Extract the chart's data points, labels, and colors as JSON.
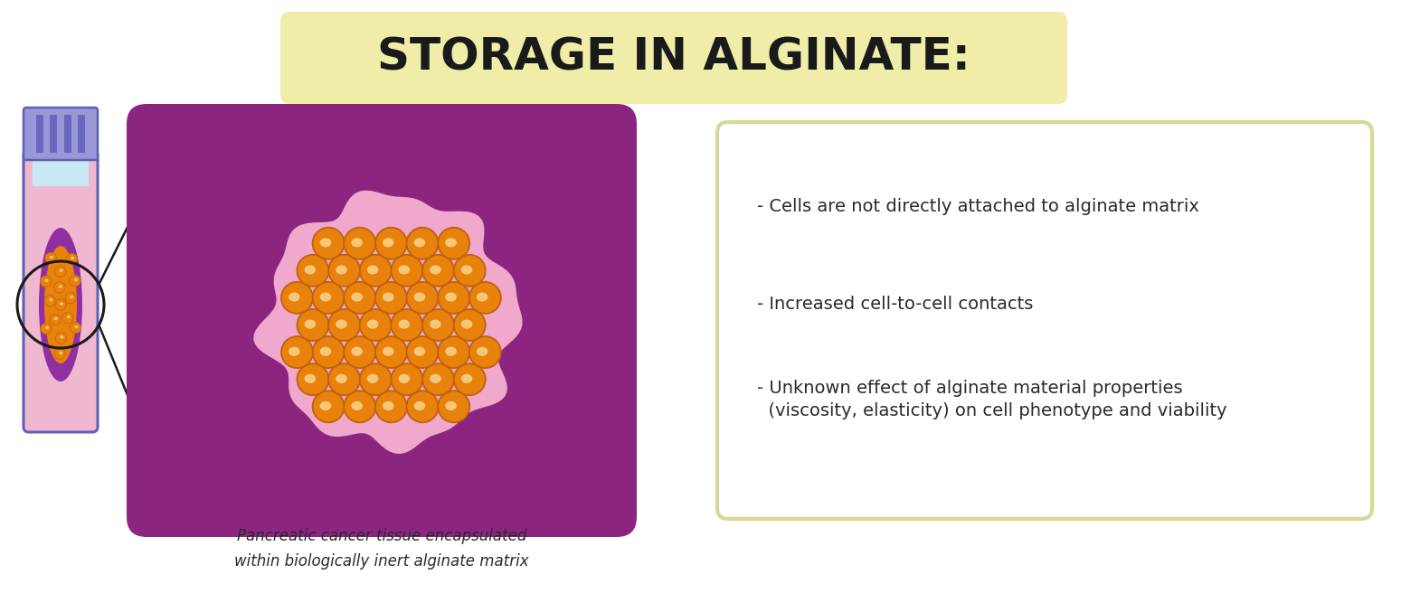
{
  "title": "STORAGE IN ALGINATE:",
  "title_bg_color": "#f0eda8",
  "title_color": "#1a1a1a",
  "title_fontsize": 36,
  "bg_color": "#ffffff",
  "box_bg_color": "#8b2580",
  "pink_halo_color": "#f0a8cc",
  "cell_cluster_color": "#e8820a",
  "cell_inner_color": "#f5c878",
  "cell_border_color": "#c06010",
  "tube_body_color": "#f0b8d0",
  "tube_border_color": "#6060b8",
  "tube_content_color": "#c06090",
  "tube_alginate_color": "#9030a0",
  "tube_cap_color": "#9898d8",
  "tube_cap_stripe_color": "#6868c0",
  "tube_liquid_color": "#c8e8f4",
  "label_text": "Pancreatic cancer tissue encapsulated\nwithin biologically inert alginate matrix",
  "label_fontsize": 12,
  "label_color": "#2a2a2a",
  "bullet_points": [
    "- Cells are not directly attached to alginate matrix",
    "- Increased cell-to-cell contacts",
    "- Unknown effect of alginate material properties\n  (viscosity, elasticity) on cell phenotype and viability"
  ],
  "bullet_fontsize": 14,
  "bullet_color": "#2a2a2a",
  "bullet_box_border_color": "#d8d898",
  "bullet_box_bg": "#ffffff",
  "line_color": "#1a1a1a"
}
